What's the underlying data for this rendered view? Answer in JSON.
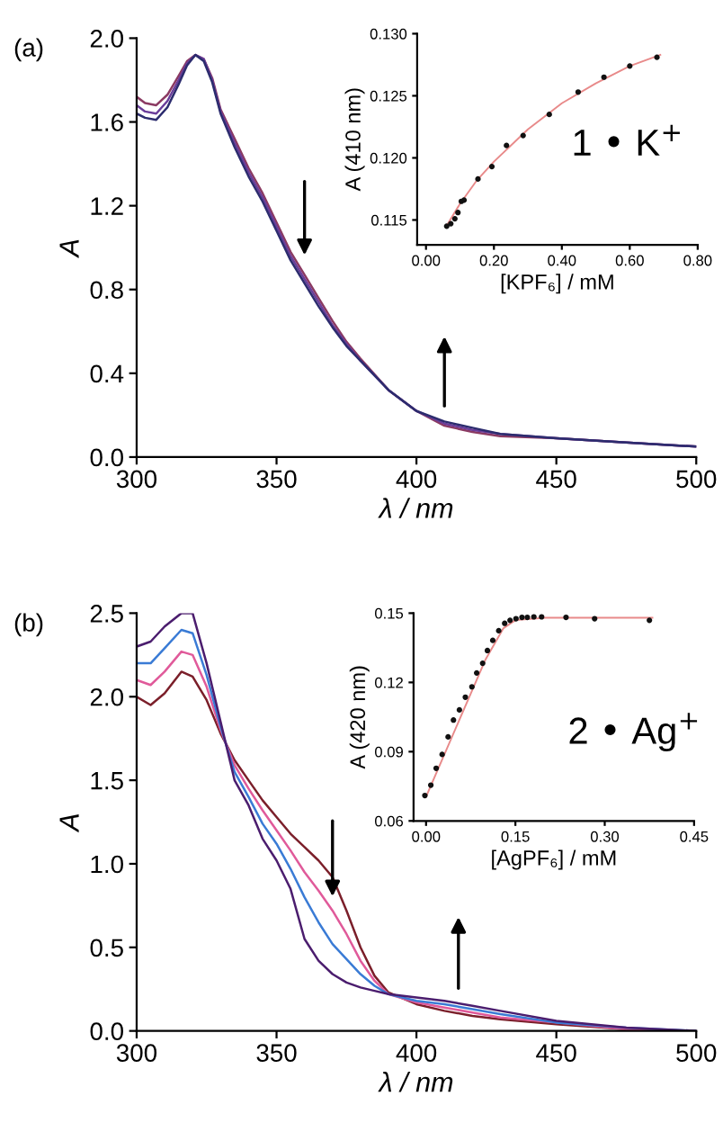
{
  "chart_data": [
    {
      "type": "line",
      "xlabel": "λ / nm",
      "ylabel": "A",
      "annotations": [
        "(a)"
      ],
      "xlim": [
        300,
        500
      ],
      "ylim": [
        0,
        2.0
      ],
      "xticks": [
        300,
        350,
        400,
        450,
        500
      ],
      "yticks": [
        {
          "value": 0,
          "label": "0.0"
        },
        0.4,
        0.8,
        1.2,
        1.6,
        {
          "value": 2.0,
          "label": "2.0"
        }
      ],
      "x": [
        300,
        303,
        307,
        311,
        315,
        318,
        321,
        324,
        327,
        330,
        335,
        340,
        345,
        350,
        355,
        360,
        365,
        370,
        375,
        380,
        390,
        400,
        410,
        420,
        430,
        450,
        475,
        500
      ],
      "series": [
        {
          "color": "#8b3a62",
          "values": [
            1.72,
            1.69,
            1.68,
            1.73,
            1.82,
            1.89,
            1.92,
            1.9,
            1.81,
            1.66,
            1.52,
            1.38,
            1.26,
            1.12,
            0.98,
            0.87,
            0.76,
            0.65,
            0.55,
            0.47,
            0.32,
            0.22,
            0.15,
            0.12,
            0.1,
            0.09,
            0.07,
            0.05
          ]
        },
        {
          "color": "#6a3d9a",
          "values": [
            1.68,
            1.65,
            1.64,
            1.7,
            1.8,
            1.88,
            1.92,
            1.9,
            1.8,
            1.65,
            1.5,
            1.36,
            1.24,
            1.1,
            0.96,
            0.85,
            0.74,
            0.63,
            0.54,
            0.46,
            0.32,
            0.22,
            0.16,
            0.13,
            0.11,
            0.09,
            0.07,
            0.05
          ]
        },
        {
          "color": "#2c2c6e",
          "values": [
            1.64,
            1.62,
            1.61,
            1.67,
            1.78,
            1.87,
            1.92,
            1.89,
            1.79,
            1.64,
            1.48,
            1.34,
            1.22,
            1.08,
            0.94,
            0.83,
            0.72,
            0.62,
            0.53,
            0.46,
            0.32,
            0.22,
            0.17,
            0.14,
            0.11,
            0.09,
            0.07,
            0.05
          ]
        }
      ]
    },
    {
      "type": "scatter",
      "xlabel": "[KPF₆] / mM",
      "ylabel": "A (410 nm)",
      "annotations": [
        "1 • K$^{+}$"
      ],
      "xlim": [
        -0.026,
        0.8
      ],
      "ylim": [
        0.113,
        0.13
      ],
      "xticks": [
        {
          "value": 0,
          "label": "0.00"
        },
        {
          "value": 0.2,
          "label": "0.20"
        },
        {
          "value": 0.4,
          "label": "0.40"
        },
        {
          "value": 0.6,
          "label": "0.60"
        },
        {
          "value": 0.8,
          "label": "0.80"
        }
      ],
      "yticks": [
        0.115,
        {
          "value": 0.12,
          "label": "0.120"
        },
        0.125,
        {
          "value": 0.13,
          "label": "0.130"
        }
      ],
      "series": [
        {
          "color": "#111111",
          "marker": "circle",
          "x": [
            0.061,
            0.073,
            0.085,
            0.094,
            0.104,
            0.112,
            0.153,
            0.194,
            0.237,
            0.286,
            0.363,
            0.448,
            0.524,
            0.6,
            0.68
          ],
          "values": [
            0.1145,
            0.1147,
            0.1151,
            0.1156,
            0.1165,
            0.1166,
            0.1183,
            0.1193,
            0.121,
            0.1218,
            0.1235,
            0.1253,
            0.1265,
            0.1274,
            0.1281
          ]
        },
        {
          "type": "line",
          "color": "#e88a8a",
          "x": [
            0.06,
            0.1,
            0.15,
            0.2,
            0.3,
            0.4,
            0.5,
            0.6,
            0.69
          ],
          "values": [
            0.1145,
            0.1163,
            0.1182,
            0.1197,
            0.1223,
            0.1244,
            0.126,
            0.1274,
            0.1283
          ]
        }
      ]
    },
    {
      "type": "line",
      "xlabel": "λ / nm",
      "ylabel": "A",
      "annotations": [
        "(b)"
      ],
      "xlim": [
        300,
        500
      ],
      "ylim": [
        0,
        2.5
      ],
      "xticks": [
        300,
        350,
        400,
        450,
        500
      ],
      "yticks": [
        {
          "value": 0,
          "label": "0.0"
        },
        0.5,
        {
          "value": 1.0,
          "label": "1.0"
        },
        1.5,
        {
          "value": 2.0,
          "label": "2.0"
        },
        2.5
      ],
      "x": [
        300,
        305,
        310,
        316,
        320,
        325,
        330,
        335,
        340,
        345,
        350,
        355,
        360,
        365,
        370,
        375,
        380,
        385,
        390,
        400,
        410,
        420,
        430,
        450,
        475,
        500
      ],
      "series": [
        {
          "color": "#7b1f2a",
          "values": [
            2.0,
            1.95,
            2.02,
            2.15,
            2.12,
            1.98,
            1.78,
            1.62,
            1.5,
            1.38,
            1.28,
            1.18,
            1.1,
            1.02,
            0.92,
            0.72,
            0.5,
            0.33,
            0.23,
            0.16,
            0.12,
            0.09,
            0.07,
            0.04,
            0.01,
            0.0
          ]
        },
        {
          "color": "#e05a9a",
          "values": [
            2.1,
            2.07,
            2.15,
            2.27,
            2.25,
            2.06,
            1.8,
            1.59,
            1.45,
            1.32,
            1.2,
            1.08,
            0.95,
            0.84,
            0.72,
            0.58,
            0.42,
            0.3,
            0.22,
            0.17,
            0.14,
            0.11,
            0.08,
            0.05,
            0.01,
            0.0
          ]
        },
        {
          "color": "#3a7bd5",
          "values": [
            2.2,
            2.2,
            2.29,
            2.4,
            2.38,
            2.13,
            1.82,
            1.55,
            1.4,
            1.24,
            1.12,
            0.97,
            0.8,
            0.65,
            0.52,
            0.43,
            0.34,
            0.27,
            0.22,
            0.18,
            0.16,
            0.13,
            0.1,
            0.05,
            0.02,
            0.0
          ]
        },
        {
          "color": "#4b1d6e",
          "values": [
            2.3,
            2.33,
            2.42,
            2.5,
            2.5,
            2.2,
            1.85,
            1.5,
            1.35,
            1.15,
            1.02,
            0.85,
            0.55,
            0.42,
            0.34,
            0.29,
            0.26,
            0.24,
            0.22,
            0.2,
            0.18,
            0.15,
            0.12,
            0.06,
            0.02,
            0.0
          ]
        }
      ]
    },
    {
      "type": "scatter",
      "xlabel": "[AgPF₆] / mM",
      "ylabel": "A (420 nm)",
      "annotations": [
        "2 • Ag$^{+}$"
      ],
      "xlim": [
        -0.021,
        0.45
      ],
      "ylim": [
        0.06,
        0.15
      ],
      "xticks": [
        {
          "value": 0,
          "label": "0.00"
        },
        0.15,
        {
          "value": 0.3,
          "label": "0.30"
        },
        0.45
      ],
      "yticks": [
        0.06,
        0.09,
        0.12,
        0.15
      ],
      "series": [
        {
          "color": "#111111",
          "marker": "circle",
          "x": [
            -0.002,
            0.008,
            0.017,
            0.027,
            0.037,
            0.046,
            0.056,
            0.066,
            0.077,
            0.085,
            0.095,
            0.103,
            0.112,
            0.122,
            0.132,
            0.141,
            0.151,
            0.161,
            0.17,
            0.181,
            0.194,
            0.235,
            0.283,
            0.375
          ],
          "values": [
            0.071,
            0.0755,
            0.0828,
            0.0888,
            0.0964,
            0.1037,
            0.1081,
            0.1136,
            0.1181,
            0.1241,
            0.1283,
            0.1338,
            0.1382,
            0.1424,
            0.1456,
            0.1469,
            0.1476,
            0.1482,
            0.1482,
            0.1484,
            0.1484,
            0.1482,
            0.1476,
            0.1469
          ]
        },
        {
          "type": "line",
          "color": "#e88a8a",
          "x": [
            0.0,
            0.1,
            0.13,
            0.15,
            0.2,
            0.38
          ],
          "values": [
            0.0705,
            0.13,
            0.1435,
            0.147,
            0.148,
            0.148
          ]
        }
      ]
    }
  ]
}
